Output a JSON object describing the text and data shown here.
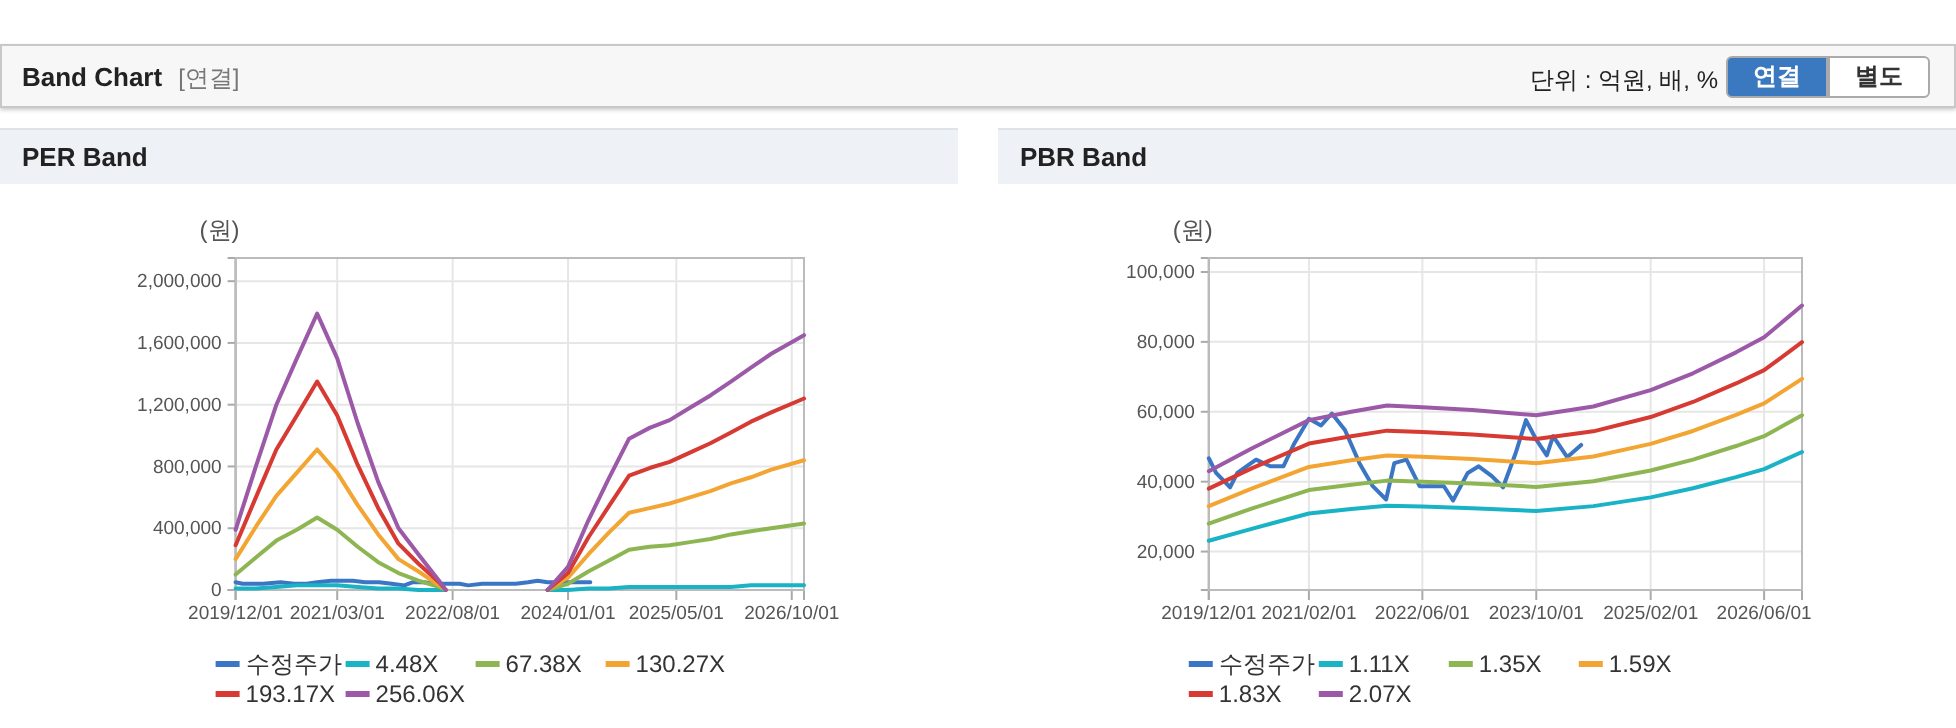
{
  "chart_data": [
    {
      "type": "other",
      "title": "Band Chart",
      "annotations": [
        "[연결]",
        "단위 : 억원, 배, %",
        "연결",
        "별도"
      ]
    },
    {
      "type": "line",
      "title": "PER Band",
      "ylabel": "(원)",
      "legend": "bottom",
      "grid": true,
      "marker": "none",
      "line_style": "solid",
      "xlim": [
        "2019-12-01",
        "2026-11-25"
      ],
      "ylim": [
        0,
        2150000
      ],
      "xticks": [
        {
          "value": "2019-12-01",
          "label": "2019/12/01"
        },
        {
          "value": "2021-03-01",
          "label": "2021/03/01"
        },
        {
          "value": "2022-08-01",
          "label": "2022/08/01"
        },
        {
          "value": "2024-01-01",
          "label": "2024/01/01"
        },
        {
          "value": "2025-05-01",
          "label": "2025/05/01"
        },
        {
          "value": "2026-10-01",
          "label": "2026/10/01"
        }
      ],
      "yticks": [
        {
          "value": 0,
          "label": "0"
        },
        {
          "value": 400000,
          "label": "400,000"
        },
        {
          "value": 800000,
          "label": "800,000"
        },
        {
          "value": 1200000,
          "label": "1,200,000"
        },
        {
          "value": 1600000,
          "label": "1,600,000"
        },
        {
          "value": 2000000,
          "label": "2,000,000"
        }
      ],
      "x": [
        "2019-12-01",
        "2020-03-01",
        "2020-06-01",
        "2020-09-01",
        "2020-12-01",
        "2021-03-01",
        "2021-06-01",
        "2021-09-01",
        "2021-12-01",
        "2022-03-01",
        "2022-06-01",
        "2022-07-01",
        "2023-01-01",
        "2023-10-01",
        "2024-01-01",
        "2024-04-01",
        "2024-07-01",
        "2024-10-01",
        "2025-01-01",
        "2025-04-01",
        "2025-07-01",
        "2025-10-01",
        "2026-01-01",
        "2026-04-01",
        "2026-07-01",
        "2026-11-25"
      ],
      "series": [
        {
          "name": "수정주가",
          "color": "#3b76c4",
          "x": [
            "2019-12-01",
            "2020-01-01",
            "2020-03-01",
            "2020-04-01",
            "2020-06-20",
            "2020-08-20",
            "2020-10-15",
            "2020-12-01",
            "2021-02-01",
            "2021-03-25",
            "2021-05-10",
            "2021-07-05",
            "2021-09-05",
            "2021-11-01",
            "2021-12-28",
            "2022-02-01",
            "2022-03-25",
            "2022-05-20",
            "2022-09-01",
            "2022-10-10",
            "2022-12-12",
            "2023-01-28",
            "2023-03-25",
            "2023-05-12",
            "2023-07-05",
            "2023-08-18",
            "2023-10-01",
            "2023-11-15",
            "2023-12-12",
            "2024-02-10",
            "2024-04-10"
          ],
          "values": [
            50000,
            40000,
            40000,
            40000,
            50000,
            40000,
            40000,
            50000,
            60000,
            60000,
            60000,
            50000,
            50000,
            40000,
            30000,
            50000,
            50000,
            40000,
            40000,
            30000,
            40000,
            40000,
            40000,
            40000,
            50000,
            60000,
            50000,
            50000,
            50000,
            50000,
            50000
          ]
        },
        {
          "name": "4.48X",
          "color": "#1ab3c6",
          "values": [
            10000,
            10000,
            20000,
            30000,
            30000,
            30000,
            20000,
            10000,
            10000,
            0,
            0,
            0,
            null,
            0,
            0,
            10000,
            10000,
            20000,
            20000,
            20000,
            20000,
            20000,
            20000,
            30000,
            30000,
            30000
          ]
        },
        {
          "name": "67.38X",
          "color": "#8db653",
          "values": [
            100000,
            210000,
            320000,
            390000,
            470000,
            390000,
            280000,
            180000,
            110000,
            60000,
            20000,
            0,
            null,
            0,
            40000,
            120000,
            190000,
            260000,
            280000,
            290000,
            310000,
            330000,
            360000,
            380000,
            400000,
            430000
          ]
        },
        {
          "name": "130.27X",
          "color": "#f3a533",
          "values": [
            200000,
            410000,
            610000,
            760000,
            910000,
            760000,
            550000,
            360000,
            200000,
            120000,
            30000,
            0,
            null,
            0,
            80000,
            230000,
            370000,
            500000,
            530000,
            560000,
            600000,
            640000,
            690000,
            730000,
            780000,
            840000
          ]
        },
        {
          "name": "193.17X",
          "color": "#d63a32",
          "values": [
            290000,
            600000,
            910000,
            1130000,
            1350000,
            1130000,
            810000,
            530000,
            300000,
            170000,
            50000,
            0,
            null,
            0,
            110000,
            340000,
            540000,
            740000,
            790000,
            830000,
            890000,
            950000,
            1020000,
            1090000,
            1150000,
            1240000
          ]
        },
        {
          "name": "256.06X",
          "color": "#9b59a8",
          "values": [
            390000,
            800000,
            1200000,
            1500000,
            1790000,
            1500000,
            1080000,
            700000,
            400000,
            230000,
            60000,
            0,
            null,
            0,
            150000,
            450000,
            720000,
            980000,
            1050000,
            1100000,
            1180000,
            1260000,
            1350000,
            1440000,
            1530000,
            1650000
          ]
        }
      ]
    },
    {
      "type": "line",
      "title": "PBR Band",
      "ylabel": "(원)",
      "legend": "bottom",
      "grid": true,
      "marker": "none",
      "line_style": "solid",
      "xlim": [
        "2019-12-01",
        "2026-11-10"
      ],
      "ylim": [
        9000,
        104000
      ],
      "xticks": [
        {
          "value": "2019-12-01",
          "label": "2019/12/01"
        },
        {
          "value": "2021-02-01",
          "label": "2021/02/01"
        },
        {
          "value": "2022-06-01",
          "label": "2022/06/01"
        },
        {
          "value": "2023-10-01",
          "label": "2023/10/01"
        },
        {
          "value": "2025-02-01",
          "label": "2025/02/01"
        },
        {
          "value": "2026-06-01",
          "label": "2026/06/01"
        }
      ],
      "yticks": [
        {
          "value": 20000,
          "label": "20,000"
        },
        {
          "value": 40000,
          "label": "40,000"
        },
        {
          "value": 60000,
          "label": "60,000"
        },
        {
          "value": 80000,
          "label": "80,000"
        },
        {
          "value": 100000,
          "label": "100,000"
        }
      ],
      "x": [
        "2019-12-01",
        "2020-06-01",
        "2021-02-01",
        "2021-08-01",
        "2022-01-01",
        "2022-06-01",
        "2023-01-01",
        "2023-10-01",
        "2024-06-01",
        "2025-02-01",
        "2025-08-01",
        "2026-02-01",
        "2026-06-01",
        "2026-11-10"
      ],
      "series": [
        {
          "name": "수정주가",
          "color": "#3b76c4",
          "x": [
            "2019-12-01",
            "2020-01-01",
            "2020-03-01",
            "2020-04-01",
            "2020-06-20",
            "2020-08-20",
            "2020-10-15",
            "2020-12-01",
            "2021-02-01",
            "2021-03-25",
            "2021-05-10",
            "2021-07-05",
            "2021-09-05",
            "2021-11-01",
            "2021-12-28",
            "2022-02-01",
            "2022-03-25",
            "2022-05-20",
            "2022-09-01",
            "2022-10-10",
            "2022-12-12",
            "2023-01-28",
            "2023-03-25",
            "2023-05-12",
            "2023-07-05",
            "2023-08-18",
            "2023-10-01",
            "2023-11-15",
            "2023-12-12",
            "2024-02-10",
            "2024-04-10"
          ],
          "values": [
            46700,
            42500,
            38400,
            42500,
            46300,
            44400,
            44400,
            51000,
            58000,
            56100,
            59500,
            54800,
            45300,
            38700,
            34900,
            45300,
            46300,
            38700,
            38700,
            34600,
            42500,
            44400,
            41600,
            38400,
            48200,
            57600,
            52000,
            47500,
            53000,
            47000,
            50500
          ]
        },
        {
          "name": "1.11X",
          "color": "#1ab3c6",
          "values": [
            23100,
            26500,
            30900,
            32200,
            33100,
            32900,
            32400,
            31600,
            33000,
            35500,
            38100,
            41300,
            43600,
            48500
          ]
        },
        {
          "name": "1.35X",
          "color": "#8db653",
          "values": [
            28000,
            32300,
            37600,
            39100,
            40300,
            40000,
            39500,
            38500,
            40100,
            43200,
            46300,
            50200,
            53000,
            59000
          ]
        },
        {
          "name": "1.59X",
          "color": "#f3a533",
          "values": [
            33000,
            38000,
            44200,
            46100,
            47500,
            47100,
            46500,
            45300,
            47200,
            50800,
            54500,
            59100,
            62400,
            69400
          ]
        },
        {
          "name": "1.83X",
          "color": "#d63a32",
          "values": [
            38000,
            43800,
            50900,
            53000,
            54600,
            54200,
            53500,
            52200,
            54400,
            58500,
            62800,
            68100,
            71900,
            79900
          ]
        },
        {
          "name": "2.07X",
          "color": "#9b59a8",
          "values": [
            43000,
            49500,
            57600,
            60000,
            61800,
            61300,
            60500,
            59000,
            61500,
            66200,
            71000,
            77000,
            81300,
            90400
          ]
        }
      ]
    }
  ]
}
